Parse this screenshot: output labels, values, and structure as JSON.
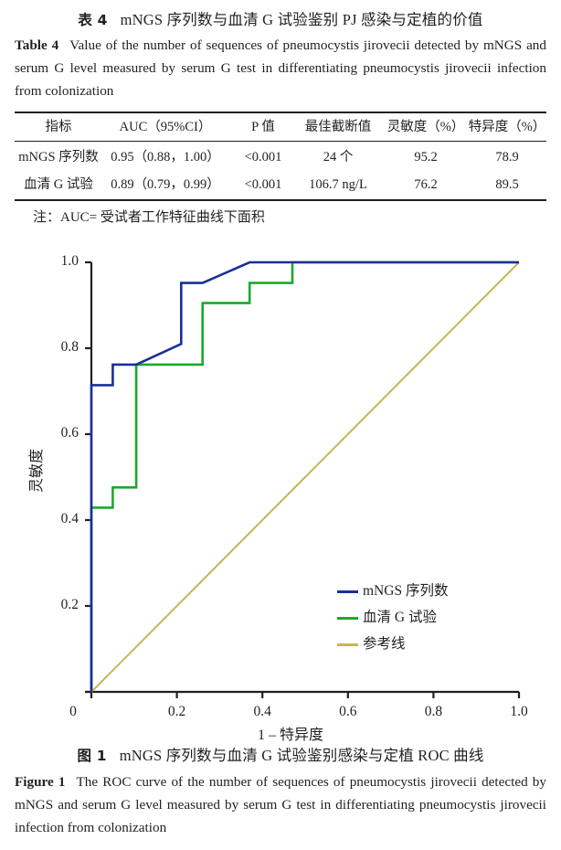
{
  "table": {
    "caption_cn_label": "表 4",
    "caption_cn": "mNGS 序列数与血清 G 试验鉴别 PJ 感染与定植的价值",
    "caption_en_label": "Table 4",
    "caption_en": "Value of the number of sequences of pneumocystis jirovecii detected by mNGS and serum G level measured by serum G test in differentiating pneumocystis jirovecii infection from colonization",
    "headers": [
      "指标",
      "AUC（95%CI）",
      "P 值",
      "最佳截断值",
      "灵敏度（%）",
      "特异度（%）"
    ],
    "rows": [
      [
        "mNGS 序列数",
        "0.95（0.88，1.00）",
        "<0.001",
        "24 个",
        "95.2",
        "78.9"
      ],
      [
        "血清 G 试验",
        "0.89（0.79，0.99）",
        "<0.001",
        "106.7 ng/L",
        "76.2",
        "89.5"
      ]
    ],
    "note": "注：AUC= 受试者工作特征曲线下面积"
  },
  "figure": {
    "caption_cn_label": "图 1",
    "caption_cn": "mNGS 序列数与血清 G 试验鉴别感染与定植 ROC 曲线",
    "caption_en_label": "Figure 1",
    "caption_en": "The ROC curve of the number of sequences of pneumocystis jirovecii detected by mNGS and serum G level measured by serum G test in differentiating pneumocystis jirovecii infection from colonization"
  },
  "chart_data": {
    "type": "line",
    "title": "",
    "xlabel": "1 – 特异度",
    "ylabel": "灵敏度",
    "xlim": [
      0,
      1.0
    ],
    "ylim": [
      0,
      1.0
    ],
    "x_ticks": [
      "0",
      "0.2",
      "0.4",
      "0.6",
      "0.8",
      "1.0"
    ],
    "y_ticks": [
      "0.2",
      "0.4",
      "0.6",
      "0.8",
      "1.0"
    ],
    "grid": false,
    "legend_position": "lower right",
    "series": [
      {
        "name": "mNGS 序列数",
        "color": "#1a2f9a",
        "x": [
          0,
          0,
          0.05,
          0.05,
          0.105,
          0.21,
          0.21,
          0.26,
          0.37,
          1.0
        ],
        "y": [
          0,
          0.714,
          0.714,
          0.762,
          0.762,
          0.81,
          0.952,
          0.952,
          1.0,
          1.0
        ]
      },
      {
        "name": "血清 G 试验",
        "color": "#1aaa2a",
        "x": [
          0,
          0,
          0.05,
          0.05,
          0.105,
          0.105,
          0.26,
          0.26,
          0.37,
          0.37,
          0.47,
          0.47,
          1.0
        ],
        "y": [
          0,
          0.429,
          0.429,
          0.476,
          0.476,
          0.762,
          0.762,
          0.905,
          0.905,
          0.952,
          0.952,
          1.0,
          1.0
        ]
      },
      {
        "name": "参考线",
        "color": "#c8b45a",
        "x": [
          0,
          1.0
        ],
        "y": [
          0,
          1.0
        ]
      }
    ]
  }
}
